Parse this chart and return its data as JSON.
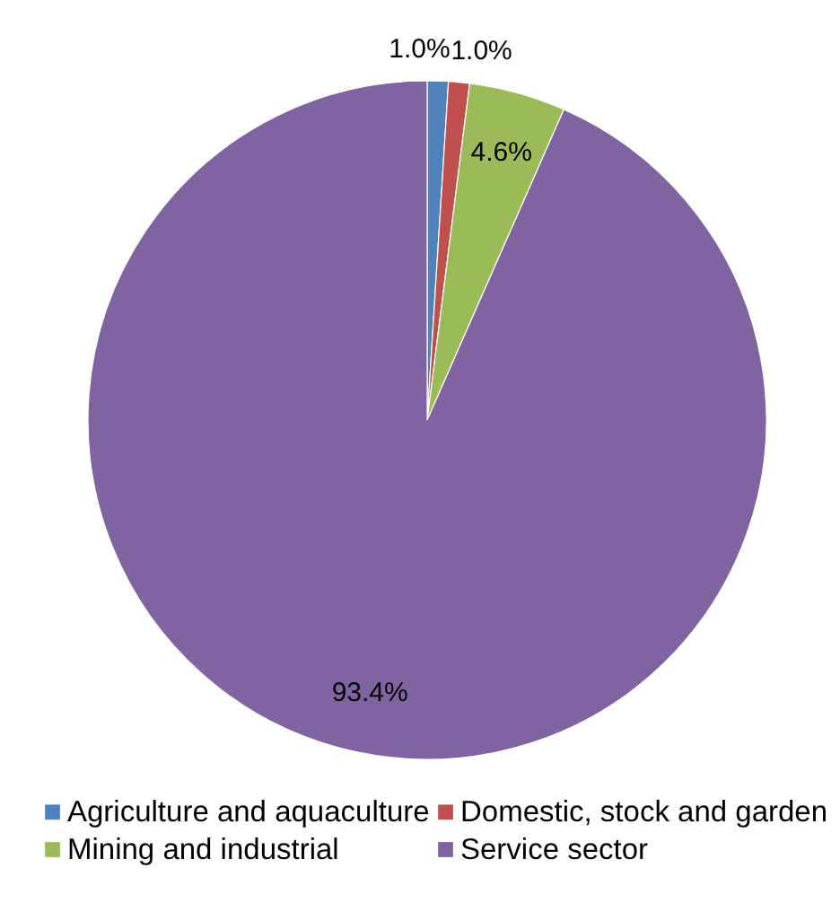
{
  "chart_data": {
    "type": "pie",
    "categories": [
      "Agriculture and aquaculture",
      "Domestic, stock and garden",
      "Mining and industrial",
      "Service sector"
    ],
    "values": [
      1.0,
      1.0,
      4.6,
      93.4
    ],
    "colors": [
      "#4f81bd",
      "#c0504d",
      "#9bbb59",
      "#8064a2"
    ],
    "value_labels": [
      "1.0%",
      "1.0%",
      "4.6%",
      "93.4%"
    ],
    "legend": "bottom"
  }
}
